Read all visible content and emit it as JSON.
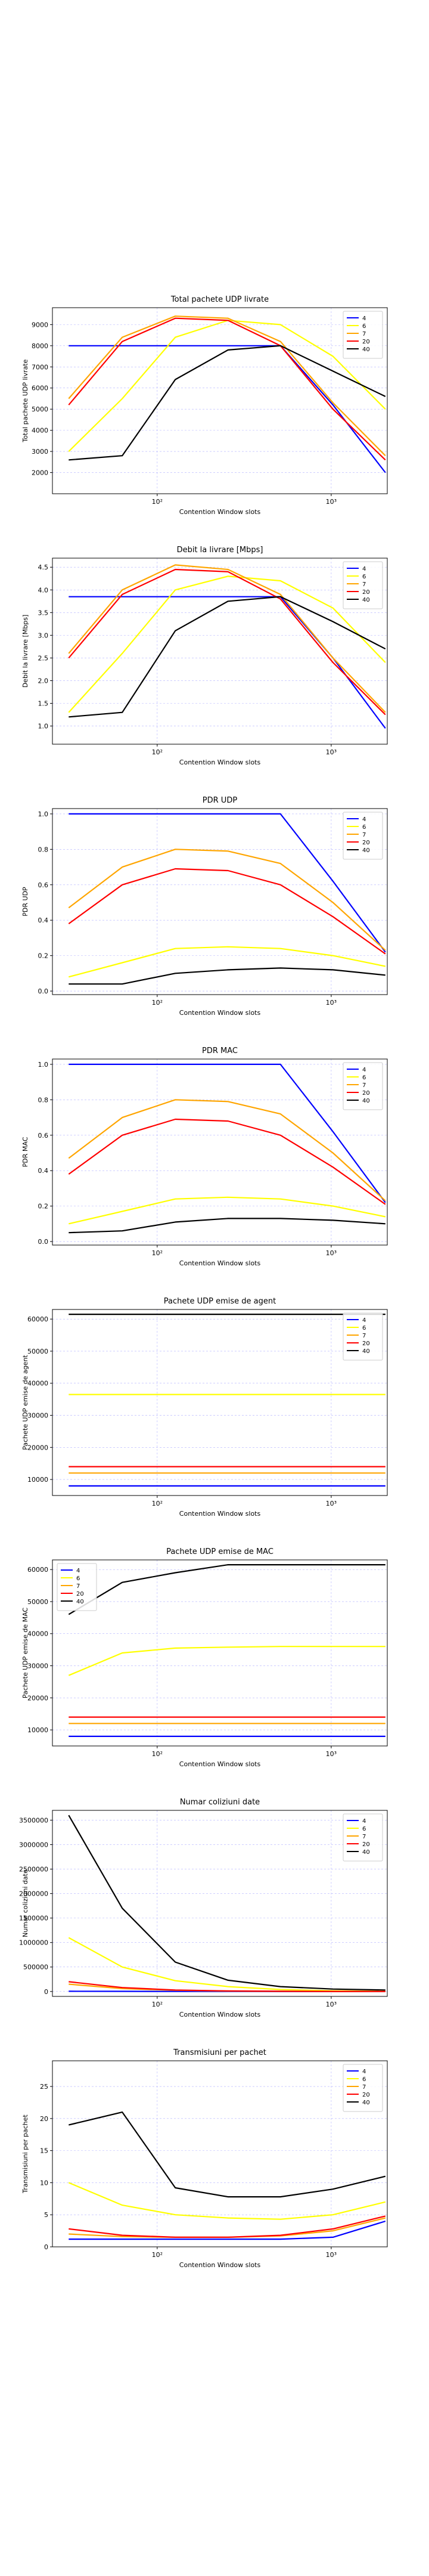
{
  "colors": {
    "s4": "#0000ff",
    "s6": "#ffff00",
    "s7": "#ffa500",
    "s20": "#ff0000",
    "s40": "#000000",
    "grid": "#b0b0ff"
  },
  "chart_data": [
    {
      "type": "line",
      "title": "Total pachete UDP livrate",
      "xlabel": "Contention Window slots",
      "ylabel": "Total pachete UDP livrate",
      "xscale": "log",
      "xlim": [
        25,
        2100
      ],
      "ylim": [
        1000,
        9800
      ],
      "yticks": [
        2000,
        3000,
        4000,
        5000,
        6000,
        7000,
        8000,
        9000
      ],
      "xticks": [
        {
          "v": 10,
          "label": "10¹"
        },
        {
          "v": 100,
          "label": "10²"
        },
        {
          "v": 1000,
          "label": "10³"
        }
      ],
      "grid": true,
      "legend": "top-right",
      "x": [
        31,
        63,
        127,
        255,
        511,
        1023,
        2047
      ],
      "series": [
        {
          "name": "4",
          "color": "#0000ff",
          "values": [
            8000,
            8000,
            8000,
            8000,
            8000,
            5200,
            2000
          ]
        },
        {
          "name": "6",
          "color": "#ffff00",
          "values": [
            3000,
            5500,
            8400,
            9200,
            9000,
            7500,
            5000
          ]
        },
        {
          "name": "7",
          "color": "#ffa500",
          "values": [
            5500,
            8400,
            9400,
            9300,
            8200,
            5300,
            2800
          ]
        },
        {
          "name": "20",
          "color": "#ff0000",
          "values": [
            5200,
            8200,
            9300,
            9200,
            8000,
            5000,
            2600
          ]
        },
        {
          "name": "40",
          "color": "#000000",
          "values": [
            2600,
            2800,
            6400,
            7800,
            8000,
            6800,
            5600
          ]
        }
      ]
    },
    {
      "type": "line",
      "title": "Debit la livrare [Mbps]",
      "xlabel": "Contention Window slots",
      "ylabel": "Debit la livrare [Mbps]",
      "xscale": "log",
      "xlim": [
        25,
        2100
      ],
      "ylim": [
        0.6,
        4.7
      ],
      "yticks": [
        1.0,
        1.5,
        2.0,
        2.5,
        3.0,
        3.5,
        4.0,
        4.5
      ],
      "xticks": [
        {
          "v": 10,
          "label": "10¹"
        },
        {
          "v": 100,
          "label": "10²"
        },
        {
          "v": 1000,
          "label": "10³"
        }
      ],
      "grid": true,
      "legend": "top-right",
      "x": [
        31,
        63,
        127,
        255,
        511,
        1023,
        2047
      ],
      "series": [
        {
          "name": "4",
          "color": "#0000ff",
          "values": [
            3.85,
            3.85,
            3.85,
            3.85,
            3.85,
            2.5,
            0.95
          ]
        },
        {
          "name": "6",
          "color": "#ffff00",
          "values": [
            1.3,
            2.6,
            4.0,
            4.3,
            4.2,
            3.6,
            2.4
          ]
        },
        {
          "name": "7",
          "color": "#ffa500",
          "values": [
            2.6,
            4.0,
            4.55,
            4.45,
            3.9,
            2.5,
            1.3
          ]
        },
        {
          "name": "20",
          "color": "#ff0000",
          "values": [
            2.5,
            3.9,
            4.45,
            4.4,
            3.8,
            2.4,
            1.25
          ]
        },
        {
          "name": "40",
          "color": "#000000",
          "values": [
            1.2,
            1.3,
            3.1,
            3.75,
            3.85,
            3.3,
            2.7
          ]
        }
      ]
    },
    {
      "type": "line",
      "title": "PDR UDP",
      "xlabel": "Contention Window slots",
      "ylabel": "PDR UDP",
      "xscale": "log",
      "xlim": [
        25,
        2100
      ],
      "ylim": [
        -0.02,
        1.03
      ],
      "yticks": [
        0.0,
        0.2,
        0.4,
        0.6,
        0.8,
        1.0
      ],
      "xticks": [
        {
          "v": 10,
          "label": "10¹"
        },
        {
          "v": 100,
          "label": "10²"
        },
        {
          "v": 1000,
          "label": "10³"
        }
      ],
      "grid": true,
      "legend": "top-right",
      "x": [
        31,
        63,
        127,
        255,
        511,
        1023,
        2047
      ],
      "series": [
        {
          "name": "4",
          "color": "#0000ff",
          "values": [
            1.0,
            1.0,
            1.0,
            1.0,
            1.0,
            0.62,
            0.22
          ]
        },
        {
          "name": "6",
          "color": "#ffff00",
          "values": [
            0.08,
            0.16,
            0.24,
            0.25,
            0.24,
            0.2,
            0.14
          ]
        },
        {
          "name": "7",
          "color": "#ffa500",
          "values": [
            0.47,
            0.7,
            0.8,
            0.79,
            0.72,
            0.5,
            0.23
          ]
        },
        {
          "name": "20",
          "color": "#ff0000",
          "values": [
            0.38,
            0.6,
            0.69,
            0.68,
            0.6,
            0.42,
            0.21
          ]
        },
        {
          "name": "40",
          "color": "#000000",
          "values": [
            0.04,
            0.04,
            0.1,
            0.12,
            0.13,
            0.12,
            0.09
          ]
        }
      ]
    },
    {
      "type": "line",
      "title": "PDR MAC",
      "xlabel": "Contention Window slots",
      "ylabel": "PDR MAC",
      "xscale": "log",
      "xlim": [
        25,
        2100
      ],
      "ylim": [
        -0.02,
        1.03
      ],
      "yticks": [
        0.0,
        0.2,
        0.4,
        0.6,
        0.8,
        1.0
      ],
      "xticks": [
        {
          "v": 10,
          "label": "10¹"
        },
        {
          "v": 100,
          "label": "10²"
        },
        {
          "v": 1000,
          "label": "10³"
        }
      ],
      "grid": true,
      "legend": "top-right",
      "x": [
        31,
        63,
        127,
        255,
        511,
        1023,
        2047
      ],
      "series": [
        {
          "name": "4",
          "color": "#0000ff",
          "values": [
            1.0,
            1.0,
            1.0,
            1.0,
            1.0,
            0.62,
            0.22
          ]
        },
        {
          "name": "6",
          "color": "#ffff00",
          "values": [
            0.1,
            0.17,
            0.24,
            0.25,
            0.24,
            0.2,
            0.14
          ]
        },
        {
          "name": "7",
          "color": "#ffa500",
          "values": [
            0.47,
            0.7,
            0.8,
            0.79,
            0.72,
            0.5,
            0.23
          ]
        },
        {
          "name": "20",
          "color": "#ff0000",
          "values": [
            0.38,
            0.6,
            0.69,
            0.68,
            0.6,
            0.42,
            0.21
          ]
        },
        {
          "name": "40",
          "color": "#000000",
          "values": [
            0.05,
            0.06,
            0.11,
            0.13,
            0.13,
            0.12,
            0.1
          ]
        }
      ]
    },
    {
      "type": "line",
      "title": "Pachete UDP emise de agent",
      "xlabel": "Contention Window slots",
      "ylabel": "Pachete UDP emise de agent",
      "xscale": "log",
      "xlim": [
        25,
        2100
      ],
      "ylim": [
        5000,
        63000
      ],
      "yticks": [
        10000,
        20000,
        30000,
        40000,
        50000,
        60000
      ],
      "xticks": [
        {
          "v": 10,
          "label": "10¹"
        },
        {
          "v": 100,
          "label": "10²"
        },
        {
          "v": 1000,
          "label": "10³"
        }
      ],
      "grid": true,
      "legend": "top-right",
      "x": [
        31,
        63,
        127,
        255,
        511,
        1023,
        2047
      ],
      "series": [
        {
          "name": "4",
          "color": "#0000ff",
          "values": [
            8000,
            8000,
            8000,
            8000,
            8000,
            8000,
            8000
          ]
        },
        {
          "name": "6",
          "color": "#ffff00",
          "values": [
            36500,
            36500,
            36500,
            36500,
            36500,
            36500,
            36500
          ]
        },
        {
          "name": "7",
          "color": "#ffa500",
          "values": [
            12000,
            12000,
            12000,
            12000,
            12000,
            12000,
            12000
          ]
        },
        {
          "name": "20",
          "color": "#ff0000",
          "values": [
            14000,
            14000,
            14000,
            14000,
            14000,
            14000,
            14000
          ]
        },
        {
          "name": "40",
          "color": "#000000",
          "values": [
            61500,
            61500,
            61500,
            61500,
            61500,
            61500,
            61500
          ]
        }
      ]
    },
    {
      "type": "line",
      "title": "Pachete UDP emise de MAC",
      "xlabel": "Contention Window slots",
      "ylabel": "Pachete UDP emise de MAC",
      "xscale": "log",
      "xlim": [
        25,
        2100
      ],
      "ylim": [
        5000,
        63000
      ],
      "yticks": [
        10000,
        20000,
        30000,
        40000,
        50000,
        60000
      ],
      "xticks": [
        {
          "v": 10,
          "label": "10¹"
        },
        {
          "v": 100,
          "label": "10²"
        },
        {
          "v": 1000,
          "label": "10³"
        }
      ],
      "grid": true,
      "legend": "top-left",
      "x": [
        31,
        63,
        127,
        255,
        511,
        1023,
        2047
      ],
      "series": [
        {
          "name": "4",
          "color": "#0000ff",
          "values": [
            8000,
            8000,
            8000,
            8000,
            8000,
            8000,
            8000
          ]
        },
        {
          "name": "6",
          "color": "#ffff00",
          "values": [
            27000,
            34000,
            35500,
            35800,
            36000,
            36000,
            36000
          ]
        },
        {
          "name": "7",
          "color": "#ffa500",
          "values": [
            12000,
            12000,
            12000,
            12000,
            12000,
            12000,
            12000
          ]
        },
        {
          "name": "20",
          "color": "#ff0000",
          "values": [
            14000,
            14000,
            14000,
            14000,
            14000,
            14000,
            14000
          ]
        },
        {
          "name": "40",
          "color": "#000000",
          "values": [
            46000,
            56000,
            59000,
            61500,
            61500,
            61500,
            61500
          ]
        }
      ]
    },
    {
      "type": "line",
      "title": "Numar coliziuni date",
      "xlabel": "Contention Window slots",
      "ylabel": "Numar coliziuni date",
      "xscale": "log",
      "xlim": [
        25,
        2100
      ],
      "ylim": [
        -100000,
        3700000
      ],
      "yticks": [
        0,
        500000,
        1000000,
        1500000,
        2000000,
        2500000,
        3000000,
        3500000
      ],
      "xticks": [
        {
          "v": 10,
          "label": "10¹"
        },
        {
          "v": 100,
          "label": "10²"
        },
        {
          "v": 1000,
          "label": "10³"
        }
      ],
      "grid": true,
      "legend": "top-right",
      "x": [
        31,
        63,
        127,
        255,
        511,
        1023,
        2047
      ],
      "series": [
        {
          "name": "4",
          "color": "#0000ff",
          "values": [
            5000,
            3000,
            1500,
            800,
            400,
            200,
            100
          ]
        },
        {
          "name": "6",
          "color": "#ffff00",
          "values": [
            1100000,
            500000,
            220000,
            100000,
            40000,
            15000,
            5000
          ]
        },
        {
          "name": "7",
          "color": "#ffa500",
          "values": [
            150000,
            60000,
            25000,
            10000,
            4000,
            2000,
            1000
          ]
        },
        {
          "name": "20",
          "color": "#ff0000",
          "values": [
            200000,
            80000,
            30000,
            12000,
            5000,
            2500,
            1000
          ]
        },
        {
          "name": "40",
          "color": "#000000",
          "values": [
            3600000,
            1700000,
            600000,
            230000,
            100000,
            50000,
            30000
          ]
        }
      ]
    },
    {
      "type": "line",
      "title": "Transmisiuni per pachet",
      "xlabel": "Contention Window slots",
      "ylabel": "Transmisiuni per pachet",
      "xscale": "log",
      "xlim": [
        25,
        2100
      ],
      "ylim": [
        0,
        29
      ],
      "yticks": [
        0,
        5,
        10,
        15,
        20,
        25
      ],
      "xticks": [
        {
          "v": 10,
          "label": "10¹"
        },
        {
          "v": 100,
          "label": "10²"
        },
        {
          "v": 1000,
          "label": "10³"
        }
      ],
      "grid": true,
      "legend": "top-right",
      "x": [
        31,
        63,
        127,
        255,
        511,
        1023,
        2047
      ],
      "series": [
        {
          "name": "4",
          "color": "#0000ff",
          "values": [
            1.2,
            1.2,
            1.2,
            1.2,
            1.2,
            1.5,
            4.0
          ]
        },
        {
          "name": "6",
          "color": "#ffff00",
          "values": [
            10.0,
            6.5,
            5.0,
            4.5,
            4.3,
            5.0,
            7.0
          ]
        },
        {
          "name": "7",
          "color": "#ffa500",
          "values": [
            2.0,
            1.6,
            1.5,
            1.5,
            1.7,
            2.5,
            4.5
          ]
        },
        {
          "name": "20",
          "color": "#ff0000",
          "values": [
            2.8,
            1.8,
            1.5,
            1.5,
            1.8,
            2.8,
            4.8
          ]
        },
        {
          "name": "40",
          "color": "#000000",
          "values": [
            19.0,
            21.0,
            9.2,
            7.8,
            7.8,
            9.0,
            11.0
          ]
        }
      ]
    }
  ]
}
